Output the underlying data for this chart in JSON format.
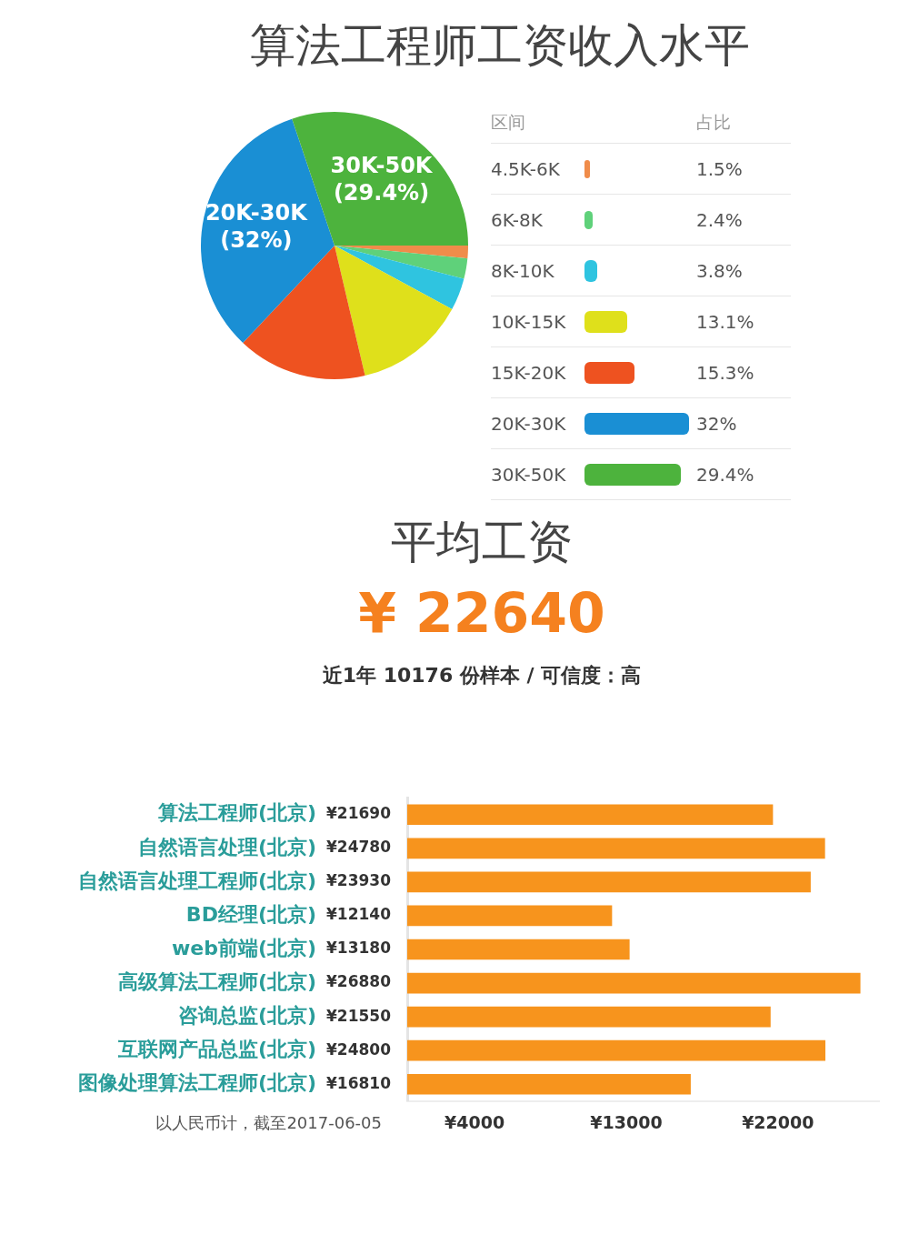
{
  "chart_data": [
    {
      "type": "pie",
      "title": "算法工程师工资收入水平",
      "legend": "right",
      "legend_title": "区间",
      "categories": [
        "4.5K-6K",
        "6K-8K",
        "8K-10K",
        "10K-15K",
        "15K-20K",
        "20K-30K",
        "30K-50K"
      ],
      "values": [
        1.5,
        2.4,
        3.8,
        13.1,
        15.3,
        32,
        29.4
      ],
      "colors": [
        "#f08c4a",
        "#5fd17a",
        "#2fc4e0",
        "#dfe01b",
        "#ee5220",
        "#1a8fd4",
        "#4db33d"
      ],
      "value_labels": [
        null,
        null,
        null,
        null,
        null,
        "(32%)",
        "(29.4%)"
      ],
      "annotations": [
        "占比",
        {
          "text": "1.5%",
          "x": "4.5K-6K"
        },
        {
          "text": "2.4%",
          "x": "6K-8K"
        },
        {
          "text": "3.8%",
          "x": "8K-10K"
        },
        {
          "text": "13.1%",
          "x": "10K-15K"
        },
        {
          "text": "15.3%",
          "x": "15K-20K"
        },
        {
          "text": "32%",
          "x": "20K-30K"
        },
        {
          "text": "29.4%",
          "x": "30K-50K"
        }
      ]
    },
    {
      "type": "other",
      "title": "平均工资",
      "annotations": [
        "¥ 22640",
        "近1年 10176 份样本 / 可信度：高"
      ]
    },
    {
      "type": "bar",
      "orientation": "horizontal",
      "categories": [
        "算法工程师(北京)",
        "自然语言处理(北京)",
        "自然语言处理工程师(北京)",
        "BD经理(北京)",
        "web前端(北京)",
        "高级算法工程师(北京)",
        "咨询总监(北京)",
        "互联网产品总监(北京)",
        "图像处理算法工程师(北京)"
      ],
      "values": [
        21690,
        24780,
        23930,
        12140,
        13180,
        26880,
        21550,
        24800,
        16810
      ],
      "value_labels": [
        "¥21690",
        "¥24780",
        "¥23930",
        "¥12140",
        "¥13180",
        "¥26880",
        "¥21550",
        "¥24800",
        "¥16810"
      ],
      "color": "#f7941d",
      "xlim": [
        0,
        28000
      ],
      "xticks": [
        {
          "value": 4000,
          "label": "¥4000"
        },
        {
          "value": 13000,
          "label": "¥13000"
        },
        {
          "value": 22000,
          "label": "¥22000"
        }
      ],
      "grid": false,
      "annotations": [
        "以人民币计，截至2017-06-05"
      ]
    }
  ]
}
